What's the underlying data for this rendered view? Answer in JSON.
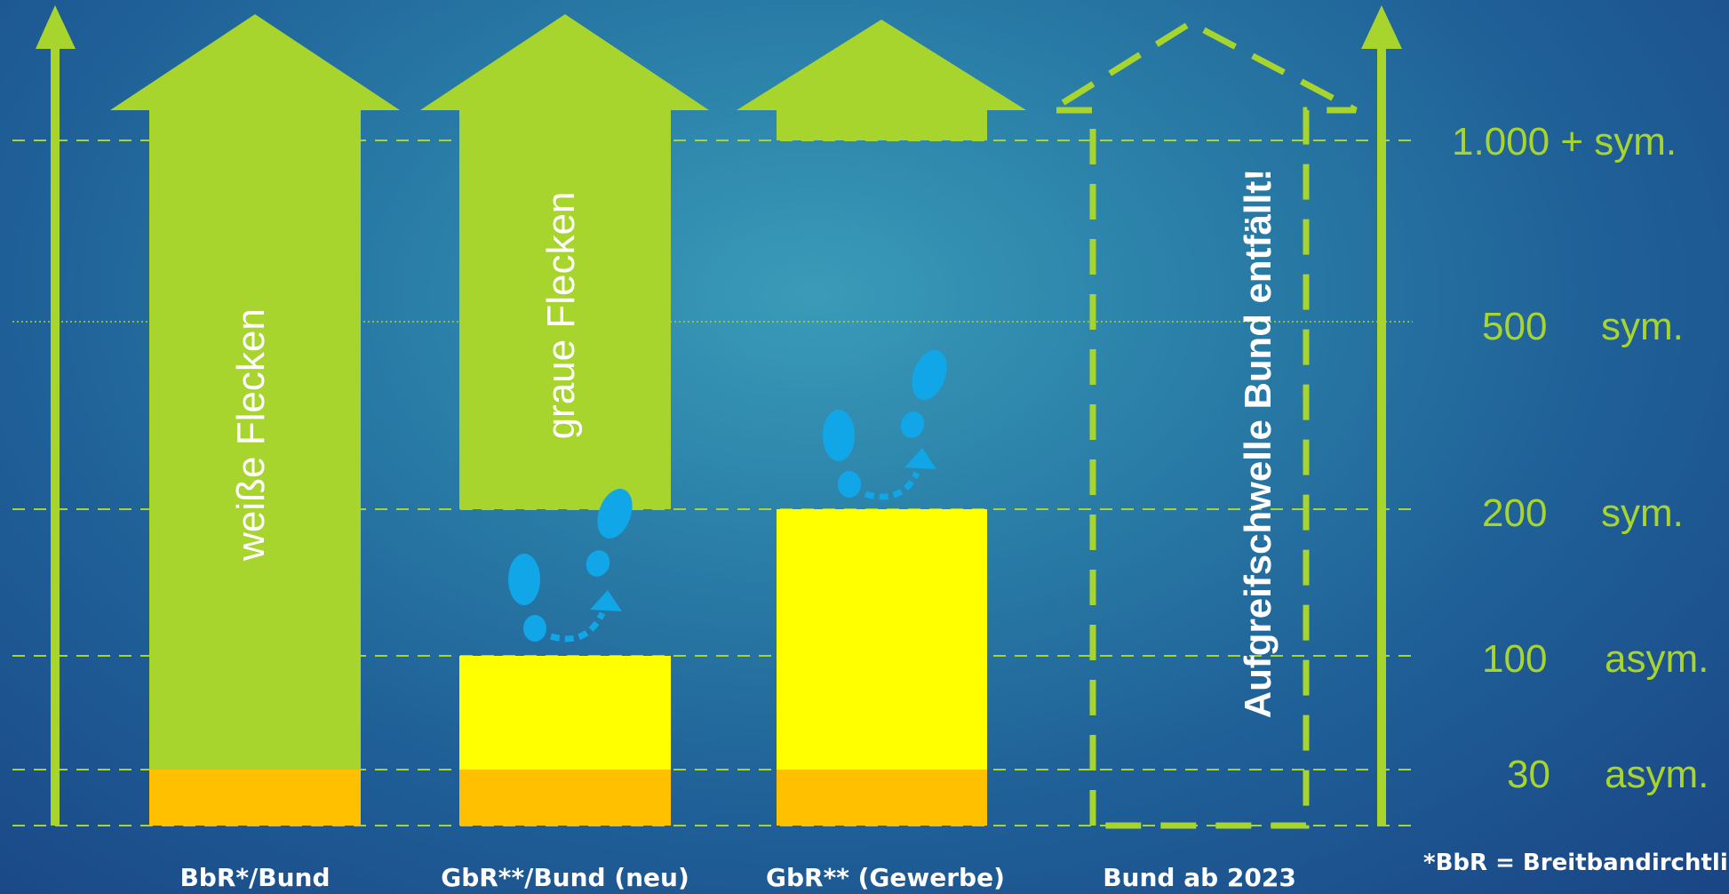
{
  "tiers": [
    {
      "id": "t1000",
      "value": "1.000 + sym.",
      "quality": ""
    },
    {
      "id": "t500",
      "value": "500",
      "quality": "sym."
    },
    {
      "id": "t200",
      "value": "200",
      "quality": "sym."
    },
    {
      "id": "t100",
      "value": "100",
      "quality": "asym."
    },
    {
      "id": "t30",
      "value": "30",
      "quality": "asym."
    }
  ],
  "columns": [
    {
      "label": "BbR*/Bund",
      "arrow_text": "weiße Flecken"
    },
    {
      "label": "GbR**/Bund (neu)",
      "arrow_text": "graue Flecken"
    },
    {
      "label": "GbR** (Gewerbe)",
      "arrow_text": ""
    },
    {
      "label": "Bund ab 2023",
      "arrow_text": "Aufgreifschwelle Bund entfällt!"
    }
  ],
  "footnote": "*BbR = Breitbandirchtli",
  "colors": {
    "green": "#a8d42e",
    "yellow": "#ffff00",
    "orange": "#ffc000",
    "footprint": "#10a6e8",
    "text_white": "#ffffff"
  },
  "icons": [
    "up-arrow-icon",
    "footprints-icon"
  ]
}
